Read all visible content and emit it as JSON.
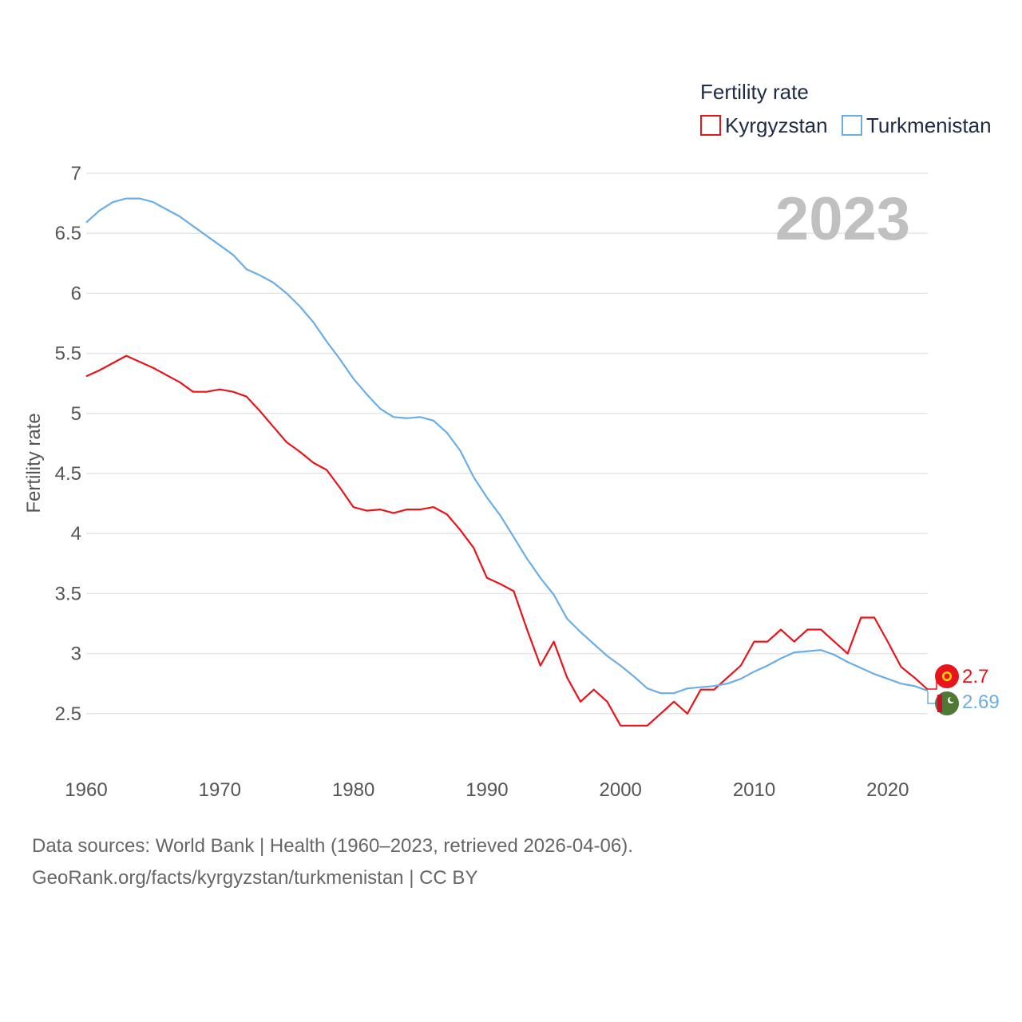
{
  "chart_data": {
    "type": "line",
    "title": "Fertility rate",
    "ylabel": "Fertility rate",
    "xlabel": "",
    "xlim": [
      1960,
      2023
    ],
    "ylim": [
      2.0,
      7.0
    ],
    "yticks": [
      2.5,
      3,
      3.5,
      4,
      4.5,
      5,
      5.5,
      6,
      6.5,
      7
    ],
    "xticks": [
      1960,
      1970,
      1980,
      1990,
      2000,
      2010,
      2020
    ],
    "current_year_label": "2023",
    "legend_position": "top-right",
    "x": [
      1960,
      1961,
      1962,
      1963,
      1964,
      1965,
      1966,
      1967,
      1968,
      1969,
      1970,
      1971,
      1972,
      1973,
      1974,
      1975,
      1976,
      1977,
      1978,
      1979,
      1980,
      1981,
      1982,
      1983,
      1984,
      1985,
      1986,
      1987,
      1988,
      1989,
      1990,
      1991,
      1992,
      1993,
      1994,
      1995,
      1996,
      1997,
      1998,
      1999,
      2000,
      2001,
      2002,
      2003,
      2004,
      2005,
      2006,
      2007,
      2008,
      2009,
      2010,
      2011,
      2012,
      2013,
      2014,
      2015,
      2016,
      2017,
      2018,
      2019,
      2020,
      2021,
      2022,
      2023
    ],
    "series": [
      {
        "name": "Kyrgyzstan",
        "color": "#e8141c",
        "end_label": "2.7",
        "values": [
          5.31,
          5.36,
          5.42,
          5.48,
          5.43,
          5.38,
          5.32,
          5.26,
          5.18,
          5.18,
          5.2,
          5.18,
          5.14,
          5.02,
          4.89,
          4.76,
          4.68,
          4.59,
          4.53,
          4.38,
          4.22,
          4.19,
          4.2,
          4.17,
          4.2,
          4.2,
          4.22,
          4.16,
          4.03,
          3.88,
          3.63,
          3.58,
          3.52,
          3.2,
          2.9,
          3.1,
          2.8,
          2.6,
          2.7,
          2.6,
          2.4,
          2.4,
          2.4,
          2.5,
          2.6,
          2.5,
          2.7,
          2.7,
          2.8,
          2.9,
          3.1,
          3.1,
          3.2,
          3.1,
          3.2,
          3.2,
          3.1,
          3.0,
          3.3,
          3.3,
          3.1,
          2.89,
          2.8,
          2.7
        ]
      },
      {
        "name": "Turkmenistan",
        "color": "#6aaee6",
        "end_label": "2.69",
        "values": [
          6.59,
          6.69,
          6.76,
          6.79,
          6.79,
          6.76,
          6.7,
          6.64,
          6.56,
          6.48,
          6.4,
          6.32,
          6.2,
          6.15,
          6.09,
          6.0,
          5.89,
          5.76,
          5.6,
          5.45,
          5.29,
          5.16,
          5.04,
          4.97,
          4.96,
          4.97,
          4.94,
          4.84,
          4.69,
          4.47,
          4.3,
          4.15,
          3.97,
          3.79,
          3.63,
          3.49,
          3.29,
          3.18,
          3.08,
          2.98,
          2.9,
          2.81,
          2.71,
          2.67,
          2.67,
          2.71,
          2.72,
          2.73,
          2.75,
          2.79,
          2.85,
          2.9,
          2.96,
          3.01,
          3.02,
          3.03,
          2.99,
          2.93,
          2.88,
          2.83,
          2.79,
          2.75,
          2.73,
          2.69
        ]
      }
    ]
  },
  "legend": {
    "title": "Fertility rate",
    "items": [
      "Kyrgyzstan",
      "Turkmenistan"
    ]
  },
  "source": {
    "line1": "Data sources: World Bank | Health (1960–2023, retrieved 2026-04-06).",
    "line2": "GeoRank.org/facts/kyrgyzstan/turkmenistan | CC BY"
  },
  "flags": [
    {
      "name": "kyrgyzstan-flag",
      "colors": {
        "field": "#e8141c",
        "sun": "#ffd700"
      }
    },
    {
      "name": "turkmenistan-flag",
      "colors": {
        "field": "#4e7a35",
        "stripe": "#c8102e",
        "crescent": "#ffffff"
      }
    }
  ]
}
